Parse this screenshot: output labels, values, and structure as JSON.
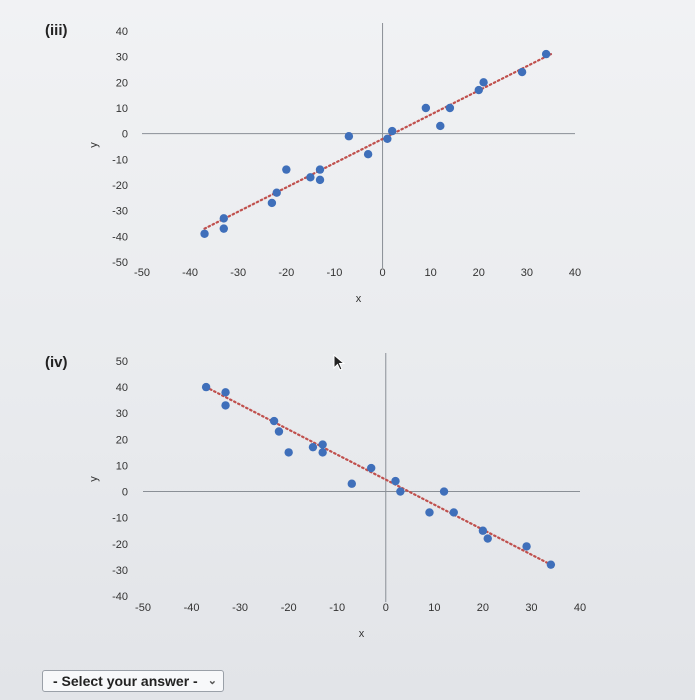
{
  "question_select": {
    "label": "- Select your answer -",
    "chevron_icon": "chevron-down-icon"
  },
  "cursor_icon": "mouse-pointer-icon",
  "chart_data": [
    {
      "panel_label": "(iii)",
      "type": "scatter",
      "xlabel": "x",
      "ylabel": "y",
      "xlim": [
        -50,
        40
      ],
      "ylim": [
        -50,
        40
      ],
      "x_ticks": [
        -50,
        -40,
        -30,
        -20,
        -10,
        0,
        10,
        20,
        30,
        40
      ],
      "y_ticks": [
        40,
        30,
        20,
        10,
        0,
        -10,
        -20,
        -30,
        -40,
        -50
      ],
      "trendline": {
        "from": [
          -37,
          -37
        ],
        "to": [
          35,
          31
        ],
        "style": "dotted",
        "color": "#c0504d"
      },
      "point_color": "#3f6fba",
      "points": [
        [
          -37,
          -39
        ],
        [
          -33,
          -37
        ],
        [
          -33,
          -33
        ],
        [
          -23,
          -27
        ],
        [
          -22,
          -23
        ],
        [
          -20,
          -14
        ],
        [
          -15,
          -17
        ],
        [
          -13,
          -18
        ],
        [
          -13,
          -14
        ],
        [
          -7,
          -1
        ],
        [
          -3,
          -8
        ],
        [
          1,
          -2
        ],
        [
          2,
          1
        ],
        [
          9,
          10
        ],
        [
          12,
          3
        ],
        [
          14,
          10
        ],
        [
          20,
          17
        ],
        [
          21,
          20
        ],
        [
          29,
          24
        ],
        [
          34,
          31
        ]
      ]
    },
    {
      "panel_label": "(iv)",
      "type": "scatter",
      "xlabel": "x",
      "ylabel": "y",
      "xlim": [
        -50,
        40
      ],
      "ylim": [
        -40,
        50
      ],
      "x_ticks": [
        -50,
        -40,
        -30,
        -20,
        -10,
        0,
        10,
        20,
        30,
        40
      ],
      "y_ticks": [
        50,
        40,
        30,
        20,
        10,
        0,
        -10,
        -20,
        -30,
        -40
      ],
      "trendline": {
        "from": [
          -37,
          40
        ],
        "to": [
          34,
          -28
        ],
        "style": "dotted",
        "color": "#c0504d"
      },
      "point_color": "#3f6fba",
      "points": [
        [
          -37,
          40
        ],
        [
          -33,
          38
        ],
        [
          -33,
          33
        ],
        [
          -23,
          27
        ],
        [
          -22,
          23
        ],
        [
          -20,
          15
        ],
        [
          -15,
          17
        ],
        [
          -13,
          18
        ],
        [
          -13,
          15
        ],
        [
          -7,
          3
        ],
        [
          -3,
          9
        ],
        [
          2,
          4
        ],
        [
          3,
          0
        ],
        [
          9,
          -8
        ],
        [
          12,
          0
        ],
        [
          14,
          -8
        ],
        [
          20,
          -15
        ],
        [
          21,
          -18
        ],
        [
          29,
          -21
        ],
        [
          34,
          -28
        ]
      ]
    }
  ]
}
